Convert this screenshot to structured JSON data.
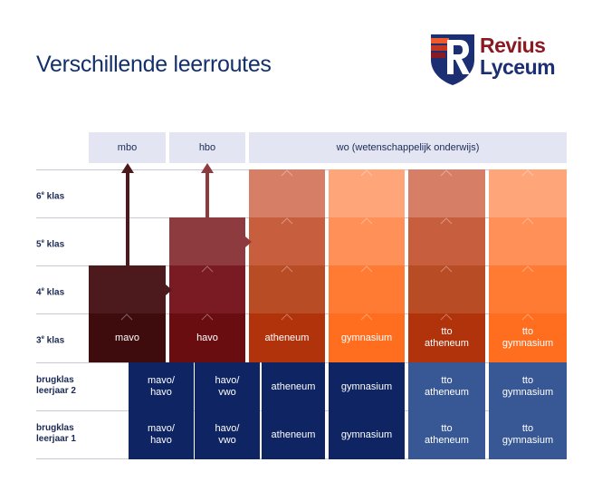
{
  "title": "Verschillende leerroutes",
  "logo": {
    "line1": "Revius",
    "line2": "Lyceum"
  },
  "top_labels": {
    "mbo": "mbo",
    "hbo": "hbo",
    "wo": "wo (wetenschappelijk onderwijs)"
  },
  "rows": {
    "klas6": {
      "num": "6",
      "sup": "e",
      "text": " klas"
    },
    "klas5": {
      "num": "5",
      "sup": "e",
      "text": " klas"
    },
    "klas4": {
      "num": "4",
      "sup": "e",
      "text": " klas"
    },
    "klas3": {
      "num": "3",
      "sup": "e",
      "text": " klas"
    },
    "brugklas2": {
      "line1": "brugklas",
      "line2": "leerjaar 2"
    },
    "brugklas1": {
      "line1": "brugklas",
      "line2": "leerjaar 1"
    }
  },
  "cells": {
    "mavo": "mavo",
    "havo": "havo",
    "atheneum": "atheneum",
    "gymnasium": "gymnasium",
    "tto_atheneum_1": "tto",
    "tto_atheneum_2": "atheneum",
    "tto_gymnasium_1": "tto",
    "tto_gymnasium_2": "gymnasium",
    "mavo_havo_1": "mavo/",
    "mavo_havo_2": "havo",
    "havo_vwo_1": "havo/",
    "havo_vwo_2": "vwo"
  },
  "colors": {
    "navy": "#0f2462",
    "tto_blue": "#385795",
    "mavo_dark": "#4a1212",
    "havo_dark": "#6a0d10",
    "atheneum_dark": "#b0330c",
    "gymnasium_orange": "#ff6e1f"
  }
}
